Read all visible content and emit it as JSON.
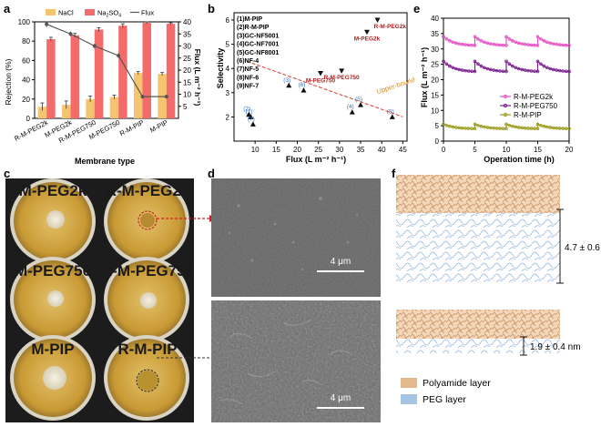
{
  "panels": {
    "a": "a",
    "b": "b",
    "c": "c",
    "d": "d",
    "e": "e",
    "f": "f"
  },
  "panel_a": {
    "chart_data": {
      "type": "bar",
      "categories": [
        "R-M-PEG2k",
        "M-PEG2k",
        "R-M-PEG750",
        "M-PEG750",
        "R-M-PIP",
        "M-PIP"
      ],
      "series": [
        {
          "name": "NaCl",
          "color": "#f4c46e",
          "values": [
            12,
            14,
            20,
            22,
            47,
            46
          ],
          "errors": [
            4,
            4,
            3,
            2,
            1.5,
            1.5
          ]
        },
        {
          "name": "Na2SO4",
          "color": "#f36b6b",
          "values": [
            82,
            86,
            92,
            96,
            99,
            98
          ],
          "errors": [
            2,
            2,
            2,
            2,
            1,
            1
          ]
        }
      ],
      "flux": {
        "name": "Flux",
        "color": "#555555",
        "values": [
          39,
          35,
          30,
          26,
          9,
          9
        ],
        "errors": [
          1.2,
          1,
          1,
          1,
          0.8,
          0.8
        ]
      },
      "xlabel": "Membrane type",
      "ylabel": "Rejection (%)",
      "y2label": "Flux (L m⁻² h⁻¹)",
      "ylim": [
        0,
        100
      ],
      "y2lim": [
        0,
        40
      ],
      "yticks": [
        "0",
        "20",
        "40",
        "60",
        "80",
        "100"
      ],
      "y2ticks": [
        "5",
        "10",
        "15",
        "20",
        "25",
        "30",
        "35",
        "40"
      ],
      "legend": {
        "nacl": "NaCl",
        "na2so4_main": "Na",
        "na2so4_sub": "2",
        "na2so4_rest": "SO",
        "na2so4_sub2": "4",
        "flux": "Flux"
      }
    }
  },
  "panel_b": {
    "chart_data": {
      "type": "scatter",
      "xlabel": "Flux (L m⁻² h⁻¹)",
      "ylabel": "Selectivity",
      "xlim": [
        5,
        46
      ],
      "ylim": [
        1,
        6.3
      ],
      "xticks": [
        "10",
        "15",
        "20",
        "25",
        "30",
        "35",
        "40",
        "45"
      ],
      "yticks": [
        "2",
        "3",
        "4",
        "5",
        "6"
      ],
      "references": [
        {
          "label": "(1)",
          "x": 9,
          "y": 2.0
        },
        {
          "label": "(2)",
          "x": 8.5,
          "y": 2.1
        },
        {
          "label": "(7)",
          "x": 9.5,
          "y": 1.7
        },
        {
          "label": "(3)",
          "x": 18,
          "y": 3.3
        },
        {
          "label": "(6)",
          "x": 21.5,
          "y": 3.1
        },
        {
          "label": "(4)",
          "x": 33,
          "y": 2.2
        },
        {
          "label": "(5)",
          "x": 35,
          "y": 2.5
        },
        {
          "label": "(8)",
          "x": 42.5,
          "y": 2.0
        }
      ],
      "highlights": [
        {
          "label": "R-M-PEG2k",
          "x": 39,
          "y": 6.0
        },
        {
          "label": "M-PEG2k",
          "x": 36.5,
          "y": 5.5
        },
        {
          "label": "M-PEG750",
          "x": 25.5,
          "y": 3.8
        },
        {
          "label": "R-M-PEG750",
          "x": 30.5,
          "y": 3.9
        }
      ],
      "upper_bound_label": "Upper-bound",
      "upper_bound_line": {
        "x1": 8,
        "y1": 4.3,
        "x2": 45,
        "y2": 2.0
      },
      "legend": [
        "(1)M-PIP",
        "(2)R-M-PIP",
        "(3)GC-NF5001",
        "(4)GC-NF7001",
        "(5)GC-NF8001",
        "(6)NF-4",
        "(7)NF-5",
        "(8)NF-6",
        "(9)NF-7"
      ]
    }
  },
  "panel_e": {
    "chart_data": {
      "type": "line",
      "xlabel": "Operation time (h)",
      "ylabel": "Flux (L m⁻² h⁻¹)",
      "xlim": [
        0,
        20
      ],
      "ylim": [
        0,
        40
      ],
      "xticks": [
        "0",
        "5",
        "10",
        "15",
        "20"
      ],
      "yticks": [
        "0",
        "5",
        "10",
        "15",
        "20",
        "25",
        "30",
        "35",
        "40"
      ],
      "cycles": [
        0,
        5,
        10,
        15
      ],
      "series": [
        {
          "name": "R-M-PEG2k",
          "color": "#e64fc4",
          "start": 34,
          "end": 31
        },
        {
          "name": "R-M-PEG750",
          "color": "#7a1f8f",
          "start": 26,
          "end": 22.5
        },
        {
          "name": "R-M-PIP",
          "color": "#9b9b1e",
          "start": 5.5,
          "end": 4
        }
      ]
    }
  },
  "panel_c": {
    "dishes": [
      {
        "label": "M-PEG2k"
      },
      {
        "label": "R-M-PEG2k"
      },
      {
        "label": "M-PEG750"
      },
      {
        "label": "R-M-PEG750"
      },
      {
        "label": "M-PIP"
      },
      {
        "label": "R-M-PIP"
      }
    ]
  },
  "panel_d": {
    "scale_top": "4 μm",
    "scale_bottom": "4 μm"
  },
  "panel_f": {
    "thickness_top": "4.7 ± 0.6 nm",
    "thickness_bottom": "1.9 ± 0.4 nm",
    "legend_polyamide": "Polyamide layer",
    "legend_peg": "PEG layer",
    "colors": {
      "polyamide": "#e3b88c",
      "peg": "#a8c4e4"
    }
  }
}
